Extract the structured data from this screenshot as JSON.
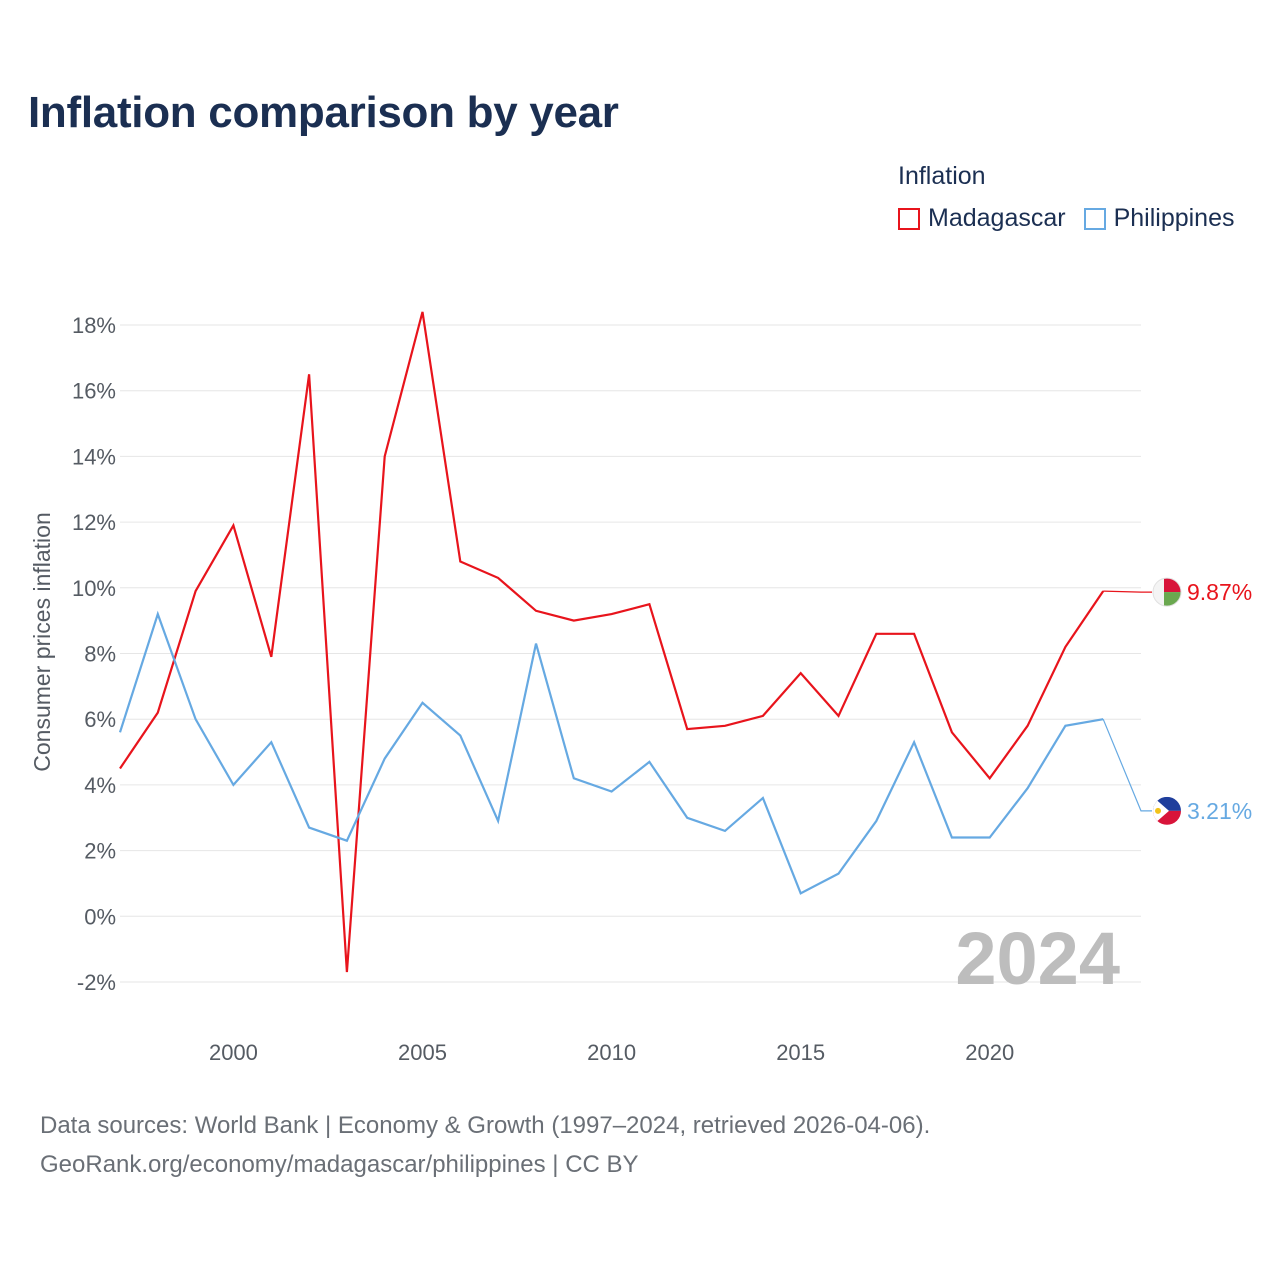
{
  "title": "Inflation comparison by year",
  "legend": {
    "title": "Inflation",
    "items": [
      {
        "label": "Madagascar",
        "color": "#e8141c"
      },
      {
        "label": "Philippines",
        "color": "#66a9e2"
      }
    ]
  },
  "chart_data": {
    "type": "line",
    "title": "Inflation comparison by year",
    "xlabel": "",
    "ylabel": "Consumer prices inflation",
    "x": [
      1997,
      1998,
      1999,
      2000,
      2001,
      2002,
      2003,
      2004,
      2005,
      2006,
      2007,
      2008,
      2009,
      2010,
      2011,
      2012,
      2013,
      2014,
      2015,
      2016,
      2017,
      2018,
      2019,
      2020,
      2021,
      2022,
      2023,
      2024
    ],
    "xlim": [
      1997,
      2024
    ],
    "ylim": [
      -2,
      18
    ],
    "x_ticks": [
      2000,
      2005,
      2010,
      2015,
      2020
    ],
    "y_ticks": [
      -2,
      0,
      2,
      4,
      6,
      8,
      10,
      12,
      14,
      16,
      18
    ],
    "y_tick_labels": [
      "-2%",
      "0%",
      "2%",
      "4%",
      "6%",
      "8%",
      "10%",
      "12%",
      "14%",
      "16%",
      "18%"
    ],
    "grid": true,
    "year_label": "2024",
    "series": [
      {
        "name": "Madagascar",
        "color": "#e8141c",
        "values": [
          4.5,
          6.2,
          9.9,
          11.9,
          7.9,
          16.5,
          -1.7,
          14.0,
          18.4,
          10.8,
          10.3,
          9.3,
          9.0,
          9.2,
          9.5,
          5.7,
          5.8,
          6.1,
          7.4,
          6.1,
          8.6,
          8.6,
          5.6,
          4.2,
          5.8,
          8.2,
          9.9,
          9.87
        ],
        "end_label": "9.87%"
      },
      {
        "name": "Philippines",
        "color": "#66a9e2",
        "values": [
          5.6,
          9.2,
          6.0,
          4.0,
          5.3,
          2.7,
          2.3,
          4.8,
          6.5,
          5.5,
          2.9,
          8.3,
          4.2,
          3.8,
          4.7,
          3.0,
          2.6,
          3.6,
          0.7,
          1.3,
          2.9,
          5.3,
          2.4,
          2.4,
          3.9,
          5.8,
          6.0,
          3.21
        ],
        "end_label": "3.21%"
      }
    ]
  },
  "source": {
    "line1": "Data sources: World Bank | Economy & Growth (1997–2024, retrieved 2026-04-06).",
    "line2": "GeoRank.org/economy/madagascar/philippines | CC BY"
  }
}
